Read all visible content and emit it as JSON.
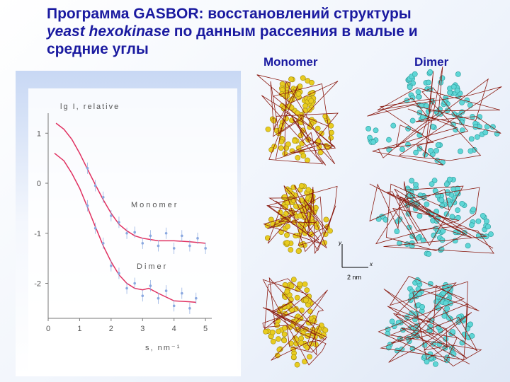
{
  "slide": {
    "title_line_1": "Программа GASBOR: восстановлений структуры",
    "title_italic": "yeast hexokinase",
    "title_line_2_rest": " по данным рассеяния в малые и",
    "title_line_3": "средние углы",
    "column_headers": [
      "Monomer",
      "Dimer"
    ],
    "scale_bar": {
      "y_axis": "y",
      "x_axis": "x",
      "label": "2 nm"
    }
  },
  "chart_data": {
    "type": "line",
    "y_label": "lg I, relative",
    "x_label": "s, nm⁻¹",
    "xlim": [
      0,
      5.2
    ],
    "ylim": [
      -2.7,
      1.4
    ],
    "xticks": [
      0,
      1,
      2,
      3,
      4,
      5
    ],
    "yticks": [
      1,
      0,
      -1,
      -2
    ],
    "annotations": [
      "Monomer",
      "Dimer"
    ],
    "series": [
      {
        "color": "#e03060",
        "x": [
          0.25,
          0.5,
          0.75,
          1,
          1.25,
          1.5,
          1.75,
          2,
          2.25,
          2.5,
          2.75,
          3,
          3.5,
          4,
          4.5,
          5
        ],
        "values": [
          1.2,
          1.08,
          0.88,
          0.6,
          0.28,
          -0.03,
          -0.33,
          -0.6,
          -0.82,
          -0.95,
          -1.05,
          -1.1,
          -1.15,
          -1.15,
          -1.17,
          -1.2
        ]
      },
      {
        "color": "#e03060",
        "x": [
          0.2,
          0.5,
          0.75,
          1,
          1.25,
          1.5,
          1.75,
          2,
          2.25,
          2.5,
          2.75,
          3,
          3.2,
          3.5,
          4,
          4.5,
          4.7
        ],
        "values": [
          0.6,
          0.45,
          0.2,
          -0.1,
          -0.48,
          -0.87,
          -1.25,
          -1.57,
          -1.83,
          -2.0,
          -2.1,
          -2.13,
          -2.1,
          -2.2,
          -2.35,
          -2.37,
          -2.38
        ]
      },
      {
        "color": "#8aa8e0",
        "x": [
          1.25,
          1.5,
          1.75,
          2,
          2.25,
          2.5,
          2.75,
          3,
          3.25,
          3.5,
          3.75,
          4,
          4.25,
          4.5,
          4.75,
          5
        ],
        "values": [
          0.3,
          -0.05,
          -0.28,
          -0.65,
          -0.78,
          -1.0,
          -0.98,
          -1.2,
          -1.05,
          -1.25,
          -1.0,
          -1.3,
          -1.05,
          -1.25,
          -1.1,
          -1.3
        ]
      },
      {
        "color": "#8aa8e0",
        "x": [
          1.25,
          1.5,
          1.75,
          2,
          2.25,
          2.5,
          2.75,
          3,
          3.25,
          3.5,
          3.75,
          4,
          4.25,
          4.5,
          4.7
        ],
        "values": [
          -0.45,
          -0.9,
          -1.2,
          -1.65,
          -1.8,
          -2.1,
          -2.0,
          -2.25,
          -2.05,
          -2.3,
          -2.15,
          -2.45,
          -2.2,
          -2.5,
          -2.3
        ]
      }
    ]
  }
}
